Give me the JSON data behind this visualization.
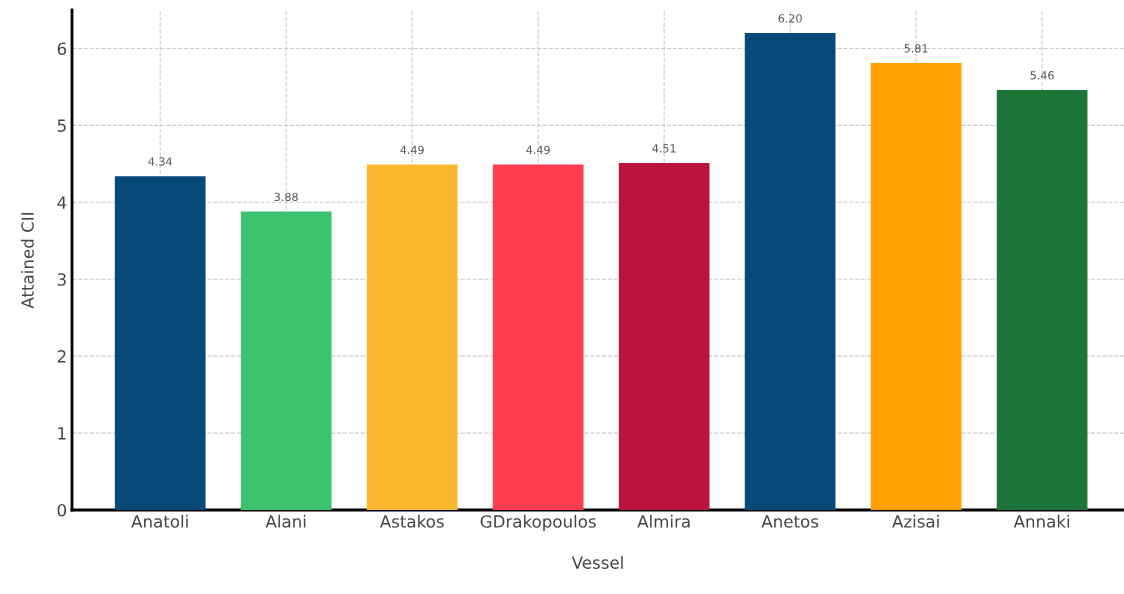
{
  "chart_data": {
    "type": "bar",
    "xlabel": "Vessel",
    "ylabel": "Attained CII",
    "categories": [
      "Anatoli",
      "Alani",
      "Astakos",
      "GDrakopoulos",
      "Almira",
      "Anetos",
      "Azisai",
      "Annaki"
    ],
    "values": [
      4.34,
      3.88,
      4.49,
      4.49,
      4.51,
      6.2,
      5.81,
      5.46
    ],
    "value_labels": [
      "4.34",
      "3.88",
      "4.49",
      "4.49",
      "4.51",
      "6.20",
      "5.81",
      "5.46"
    ],
    "colors": [
      "#074a78",
      "#3cc36f",
      "#fbb72c",
      "#ff3d4f",
      "#b8143c",
      "#074a78",
      "#ff9f00",
      "#1e7539"
    ],
    "ylim": [
      0,
      6.5
    ],
    "yticks": [
      0,
      1,
      2,
      3,
      4,
      5,
      6
    ],
    "grid": true
  }
}
